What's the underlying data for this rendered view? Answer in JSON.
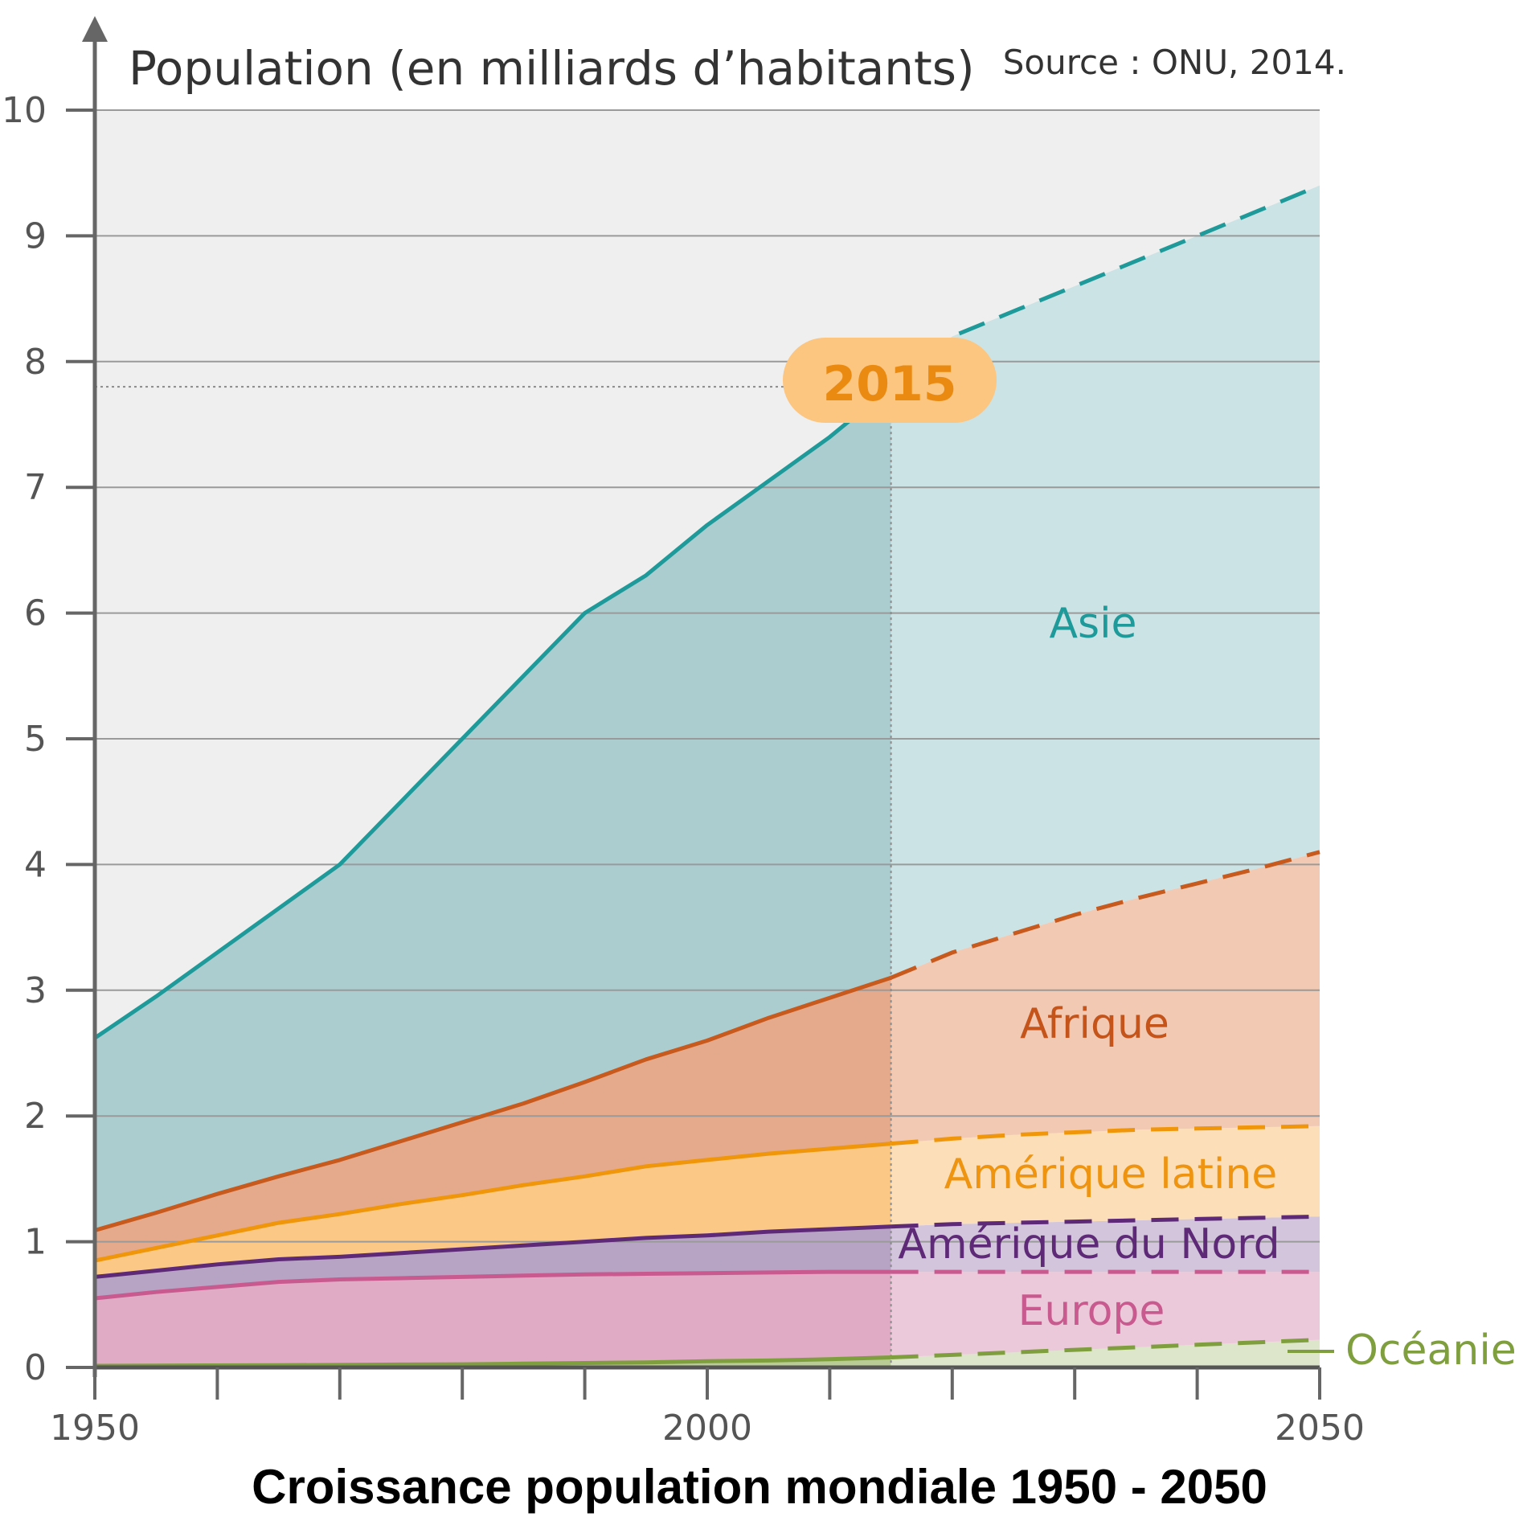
{
  "caption": "Croissance population mondiale 1950 - 2050",
  "chart_data": {
    "type": "area",
    "stacked": true,
    "ylabel": "Population (en milliards d’habitants)",
    "source": "Source : ONU, 2014.",
    "highlight_label": "2015",
    "highlight_year": 2015,
    "xlim": [
      1950,
      2050
    ],
    "ylim": [
      0,
      10
    ],
    "x_ticks": [
      1950,
      1960,
      1970,
      1980,
      1990,
      2000,
      2010,
      2020,
      2030,
      2040,
      2050
    ],
    "x_tick_labels": [
      {
        "value": 1950,
        "label": "1950"
      },
      {
        "value": 2000,
        "label": "2000"
      },
      {
        "value": 2050,
        "label": "2050"
      }
    ],
    "y_ticks": [
      0,
      1,
      2,
      3,
      4,
      5,
      6,
      7,
      8,
      9,
      10
    ],
    "y_tick_labels": [
      "0",
      "1",
      "2",
      "3",
      "4",
      "5",
      "6",
      "7",
      "8",
      "9",
      "10"
    ],
    "grid": true,
    "observed_until": 2015,
    "projection_style": "dashed after 2015",
    "x": [
      1950,
      1955,
      1960,
      1965,
      1970,
      1975,
      1980,
      1985,
      1990,
      1995,
      2000,
      2005,
      2010,
      2015,
      2020,
      2025,
      2030,
      2035,
      2040,
      2045,
      2050
    ],
    "series": [
      {
        "name": "Océanie",
        "color": "#7f9f3f",
        "fill": "#b9cc95",
        "fill_projection": "#dde6cb",
        "cumulative": [
          0.013,
          0.015,
          0.016,
          0.018,
          0.02,
          0.023,
          0.025,
          0.03,
          0.035,
          0.04,
          0.05,
          0.055,
          0.065,
          0.08,
          0.1,
          0.12,
          0.14,
          0.16,
          0.18,
          0.2,
          0.22
        ]
      },
      {
        "name": "Europe",
        "color": "#c85a8f",
        "fill": "#dfabc5",
        "fill_projection": "#ecc9da",
        "cumulative": [
          0.55,
          0.6,
          0.64,
          0.68,
          0.7,
          0.71,
          0.72,
          0.73,
          0.74,
          0.745,
          0.75,
          0.755,
          0.76,
          0.76,
          0.76,
          0.76,
          0.76,
          0.76,
          0.76,
          0.76,
          0.76
        ]
      },
      {
        "name": "Amérique du Nord",
        "color": "#5e2a78",
        "fill": "#b7a3c4",
        "fill_projection": "#d3c5dc",
        "cumulative": [
          0.72,
          0.77,
          0.82,
          0.86,
          0.88,
          0.91,
          0.94,
          0.97,
          1.0,
          1.03,
          1.05,
          1.08,
          1.1,
          1.12,
          1.14,
          1.15,
          1.16,
          1.17,
          1.18,
          1.19,
          1.2
        ]
      },
      {
        "name": "Amérique latine",
        "color": "#f0960a",
        "fill": "#fbc886",
        "fill_projection": "#fcdfb8",
        "cumulative": [
          0.85,
          0.95,
          1.05,
          1.15,
          1.22,
          1.3,
          1.37,
          1.45,
          1.52,
          1.6,
          1.65,
          1.7,
          1.74,
          1.78,
          1.82,
          1.85,
          1.87,
          1.89,
          1.9,
          1.91,
          1.92
        ]
      },
      {
        "name": "Afrique",
        "color": "#c85a1e",
        "fill": "#e5aa8c",
        "fill_projection": "#f2c9b3",
        "cumulative": [
          1.09,
          1.23,
          1.38,
          1.52,
          1.65,
          1.8,
          1.95,
          2.1,
          2.27,
          2.45,
          2.6,
          2.78,
          2.94,
          3.1,
          3.3,
          3.45,
          3.6,
          3.73,
          3.85,
          3.97,
          4.1
        ]
      },
      {
        "name": "Asie",
        "color": "#1f9a9a",
        "fill": "#abcdd0",
        "fill_projection": "#cbe3e5",
        "cumulative": [
          2.62,
          2.95,
          3.3,
          3.65,
          4.0,
          4.5,
          5.0,
          5.5,
          6.0,
          6.3,
          6.7,
          7.05,
          7.4,
          7.8,
          8.2,
          8.4,
          8.6,
          8.8,
          9.0,
          9.2,
          9.4
        ]
      }
    ]
  }
}
